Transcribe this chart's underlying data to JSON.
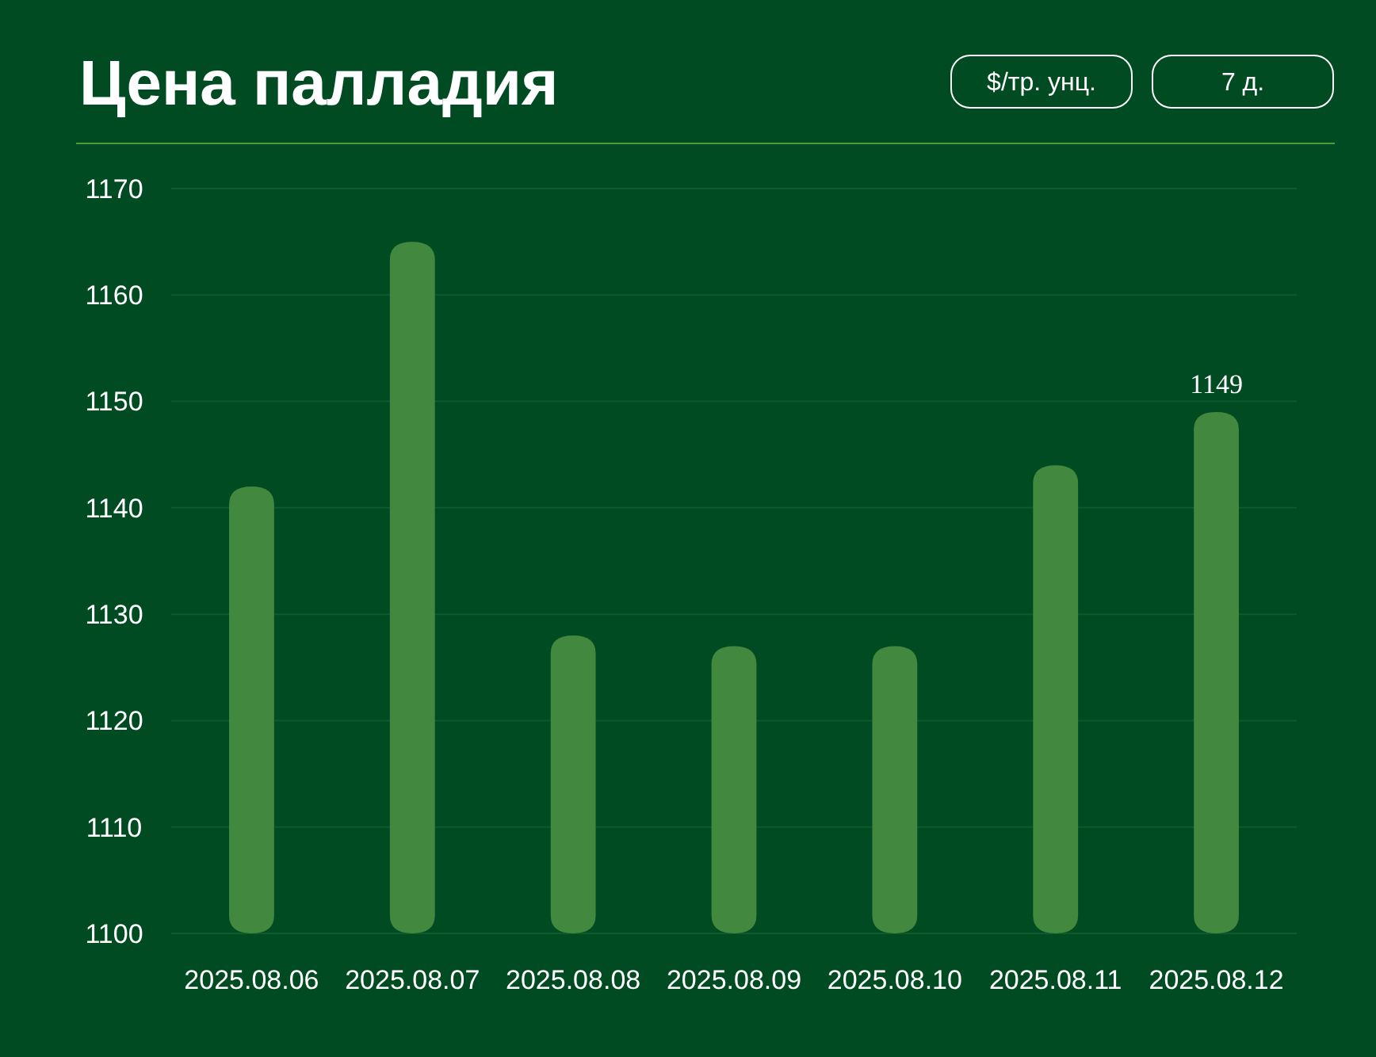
{
  "chart_data": {
    "type": "bar",
    "title": "Цена палладия",
    "annotations": [
      "$/тр. унц.",
      "7 д."
    ],
    "categories": [
      "2025.08.06",
      "2025.08.07",
      "2025.08.08",
      "2025.08.09",
      "2025.08.10",
      "2025.08.11",
      "2025.08.12"
    ],
    "values": [
      1142,
      1165,
      1128,
      1127,
      1127,
      1144,
      1149
    ],
    "value_labels": [
      null,
      null,
      null,
      null,
      null,
      null,
      "1149"
    ],
    "color": "#43883f",
    "ylim": [
      1100,
      1170
    ],
    "yticks": [
      1100,
      1110,
      1120,
      1130,
      1140,
      1150,
      1160,
      1170
    ],
    "grid": "y"
  }
}
